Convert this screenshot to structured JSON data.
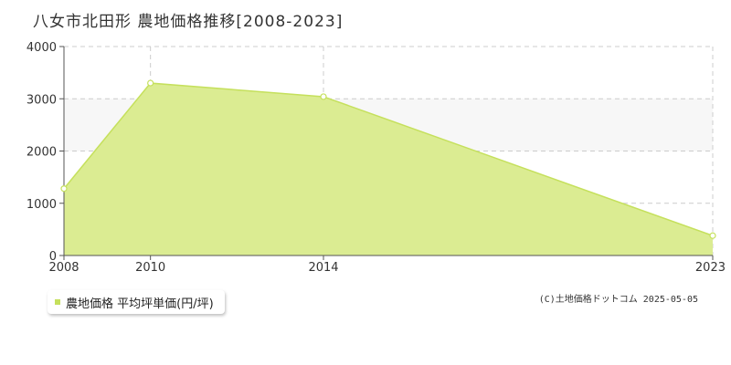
{
  "header": {
    "title": "八女市北田形 農地価格推移[2008-2023]"
  },
  "legend": {
    "label": "農地価格 平均坪単価(円/坪)"
  },
  "footer": {
    "copyright": "(C)土地価格ドットコム 2025-05-05"
  },
  "colors": {
    "area_fill": "#dbec92",
    "area_line": "#c5e05c",
    "marker_fill": "#ffffff",
    "grid": "#cccccc",
    "axis": "#555555",
    "band": "#f7f7f7"
  },
  "chart_data": {
    "type": "area",
    "title": "八女市北田形 農地価格推移[2008-2023]",
    "xlabel": "",
    "ylabel": "",
    "x": [
      2008,
      2010,
      2014,
      2023
    ],
    "x_tick_labels": [
      "2008",
      "2010",
      "2014",
      "2023"
    ],
    "series": [
      {
        "name": "農地価格 平均坪単価(円/坪)",
        "values": [
          1280,
          3300,
          3040,
          380
        ]
      }
    ],
    "xlim": [
      2008,
      2023
    ],
    "ylim": [
      0,
      4000
    ],
    "y_ticks": [
      0,
      1000,
      2000,
      3000,
      4000
    ],
    "y_tick_labels": [
      "0",
      "1000",
      "2000",
      "3000",
      "4000"
    ],
    "grid": true,
    "legend_position": "bottom-left"
  }
}
